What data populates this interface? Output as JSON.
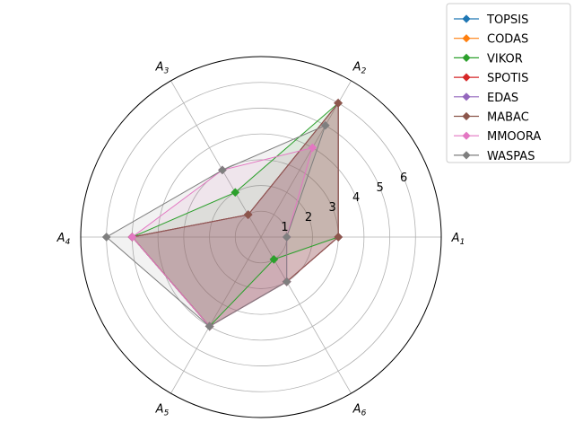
{
  "chart_data": {
    "type": "radar",
    "title": "",
    "axes": [
      {
        "letter": "A",
        "sub": "1"
      },
      {
        "letter": "A",
        "sub": "2"
      },
      {
        "letter": "A",
        "sub": "3"
      },
      {
        "letter": "A",
        "sub": "4"
      },
      {
        "letter": "A",
        "sub": "5"
      },
      {
        "letter": "A",
        "sub": "6"
      }
    ],
    "rlim": [
      0,
      7
    ],
    "rticks": [
      1,
      2,
      3,
      4,
      5,
      6
    ],
    "grid": true,
    "legend_position": "upper-right outside",
    "series": [
      {
        "name": "TOPSIS",
        "color": "#1f77b4",
        "values": [
          3,
          6,
          1,
          5,
          4,
          2
        ]
      },
      {
        "name": "CODAS",
        "color": "#ff7f0e",
        "values": [
          3,
          6,
          1,
          5,
          4,
          2
        ]
      },
      {
        "name": "VIKOR",
        "color": "#2ca02c",
        "values": [
          3,
          6,
          2,
          5,
          4,
          1
        ]
      },
      {
        "name": "SPOTIS",
        "color": "#d62728",
        "values": [
          3,
          6,
          1,
          5,
          4,
          2
        ]
      },
      {
        "name": "EDAS",
        "color": "#9467bd",
        "values": [
          3,
          6,
          1,
          5,
          4,
          2
        ]
      },
      {
        "name": "MABAC",
        "color": "#8c564b",
        "values": [
          3,
          6,
          1,
          5,
          4,
          2
        ]
      },
      {
        "name": "MMOORA",
        "color": "#e377c2",
        "values": [
          1,
          4,
          3,
          5,
          4,
          2
        ]
      },
      {
        "name": "WASPAS",
        "color": "#7f7f7f",
        "values": [
          1,
          5,
          3,
          6,
          4,
          2
        ]
      }
    ]
  }
}
